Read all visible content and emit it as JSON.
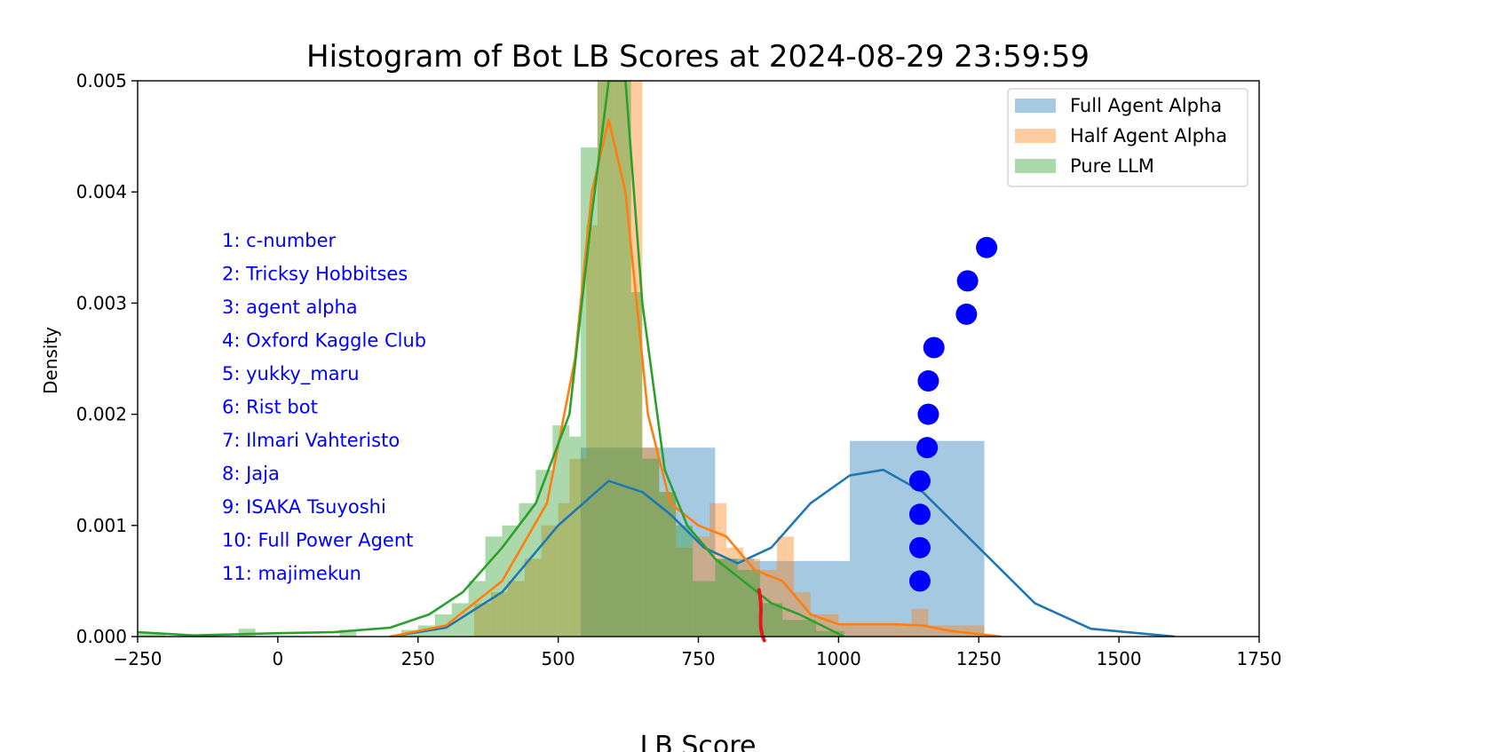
{
  "chart_data": {
    "type": "bar",
    "title": "Histogram of Bot LB Scores at 2024-08-29 23:59:59",
    "xlabel": "LB Score",
    "ylabel": "Density",
    "xlim": [
      -250,
      1750
    ],
    "ylim": [
      0,
      0.005
    ],
    "xticks": [
      -250,
      0,
      250,
      500,
      750,
      1000,
      1250,
      1500,
      1750
    ],
    "yticks": [
      0.0,
      0.001,
      0.002,
      0.003,
      0.004,
      0.005
    ],
    "xtick_labels": [
      "−250",
      "0",
      "250",
      "500",
      "750",
      "1000",
      "1250",
      "1500",
      "1750"
    ],
    "ytick_labels": [
      "0.000",
      "0.001",
      "0.002",
      "0.003",
      "0.004",
      "0.005"
    ],
    "grid": false,
    "legend_position": "top-right",
    "series": [
      {
        "name": "Full Agent Alpha",
        "color": "#1f77b4",
        "bins": [
          [
            540,
            650,
            0.0017
          ],
          [
            650,
            780,
            0.0017
          ],
          [
            780,
            850,
            0.0007
          ],
          [
            850,
            1020,
            0.00068
          ],
          [
            1020,
            1260,
            0.00176
          ]
        ],
        "kde": [
          [
            200,
            0.0
          ],
          [
            300,
            8e-05
          ],
          [
            400,
            0.0004
          ],
          [
            500,
            0.001
          ],
          [
            590,
            0.0014
          ],
          [
            650,
            0.0013
          ],
          [
            700,
            0.0011
          ],
          [
            760,
            0.0008
          ],
          [
            820,
            0.00066
          ],
          [
            880,
            0.0008
          ],
          [
            950,
            0.0012
          ],
          [
            1020,
            0.00145
          ],
          [
            1080,
            0.0015
          ],
          [
            1150,
            0.0013
          ],
          [
            1250,
            0.0008
          ],
          [
            1350,
            0.0003
          ],
          [
            1450,
            7e-05
          ],
          [
            1600,
            0.0
          ]
        ]
      },
      {
        "name": "Half Agent Alpha",
        "color": "#ff7f0e",
        "bins": [
          [
            350,
            380,
            0.0003
          ],
          [
            380,
            410,
            0.0004
          ],
          [
            410,
            440,
            0.0005
          ],
          [
            440,
            470,
            0.0007
          ],
          [
            470,
            500,
            0.001
          ],
          [
            500,
            520,
            0.0012
          ],
          [
            520,
            550,
            0.0016
          ],
          [
            550,
            570,
            0.0037
          ],
          [
            570,
            610,
            0.005
          ],
          [
            610,
            650,
            0.005
          ],
          [
            650,
            680,
            0.0017
          ],
          [
            680,
            710,
            0.0013
          ],
          [
            710,
            740,
            0.0008
          ],
          [
            740,
            770,
            0.0009
          ],
          [
            770,
            800,
            0.0012
          ],
          [
            800,
            830,
            0.0008
          ],
          [
            830,
            860,
            0.0007
          ],
          [
            860,
            890,
            0.0006
          ],
          [
            890,
            920,
            0.0009
          ],
          [
            920,
            950,
            0.0004
          ],
          [
            950,
            1000,
            0.0002
          ],
          [
            1000,
            1130,
            0.0001
          ],
          [
            1130,
            1160,
            0.00025
          ],
          [
            1160,
            1260,
            0.0001
          ]
        ],
        "kde": [
          [
            200,
            0.0
          ],
          [
            300,
            0.0001
          ],
          [
            400,
            0.0005
          ],
          [
            480,
            0.0012
          ],
          [
            530,
            0.0025
          ],
          [
            560,
            0.004
          ],
          [
            590,
            0.00465
          ],
          [
            620,
            0.004
          ],
          [
            660,
            0.002
          ],
          [
            700,
            0.0012
          ],
          [
            750,
            0.001
          ],
          [
            800,
            0.0009
          ],
          [
            850,
            0.0006
          ],
          [
            900,
            0.0005
          ],
          [
            950,
            0.0002
          ],
          [
            1000,
            0.00011
          ],
          [
            1100,
            0.00011
          ],
          [
            1150,
            0.0001
          ],
          [
            1200,
            5e-05
          ],
          [
            1290,
            0.0
          ]
        ]
      },
      {
        "name": "Pure LLM",
        "color": "#2ca02c",
        "bins": [
          [
            -250,
            -200,
            3e-05
          ],
          [
            -70,
            -40,
            7e-05
          ],
          [
            110,
            140,
            6e-05
          ],
          [
            220,
            250,
            6e-05
          ],
          [
            250,
            280,
            0.0001
          ],
          [
            280,
            310,
            0.0002
          ],
          [
            310,
            340,
            0.0003
          ],
          [
            340,
            370,
            0.0005
          ],
          [
            370,
            400,
            0.0009
          ],
          [
            400,
            430,
            0.001
          ],
          [
            430,
            460,
            0.0012
          ],
          [
            460,
            490,
            0.0015
          ],
          [
            490,
            520,
            0.0019
          ],
          [
            520,
            540,
            0.0018
          ],
          [
            540,
            570,
            0.0044
          ],
          [
            570,
            600,
            0.005
          ],
          [
            600,
            630,
            0.005
          ],
          [
            630,
            650,
            0.0031
          ],
          [
            650,
            680,
            0.0016
          ],
          [
            680,
            710,
            0.0013
          ],
          [
            710,
            740,
            0.001
          ],
          [
            740,
            780,
            0.0005
          ],
          [
            780,
            820,
            0.0007
          ],
          [
            820,
            860,
            0.0006
          ],
          [
            860,
            900,
            0.0003
          ],
          [
            900,
            960,
            0.00015
          ],
          [
            960,
            1010,
            5e-05
          ]
        ],
        "kde": [
          [
            -250,
            4e-05
          ],
          [
            -150,
            1e-05
          ],
          [
            0,
            3e-05
          ],
          [
            100,
            4e-05
          ],
          [
            200,
            8e-05
          ],
          [
            270,
            0.0002
          ],
          [
            330,
            0.0004
          ],
          [
            400,
            0.0008
          ],
          [
            460,
            0.0012
          ],
          [
            520,
            0.002
          ],
          [
            560,
            0.0038
          ],
          [
            590,
            0.005
          ],
          [
            620,
            0.005
          ],
          [
            650,
            0.003
          ],
          [
            690,
            0.0015
          ],
          [
            730,
            0.001
          ],
          [
            780,
            0.0007
          ],
          [
            830,
            0.0005
          ],
          [
            880,
            0.0003
          ],
          [
            930,
            0.0002
          ],
          [
            970,
            0.0001
          ],
          [
            1010,
            0.0
          ]
        ]
      }
    ],
    "markers": {
      "color": "#0000ff",
      "points": [
        [
          1264,
          0.0035
        ],
        [
          1230,
          0.0032
        ],
        [
          1228,
          0.0029
        ],
        [
          1170,
          0.0026
        ],
        [
          1160,
          0.0023
        ],
        [
          1160,
          0.002
        ],
        [
          1158,
          0.0017
        ],
        [
          1145,
          0.0014
        ],
        [
          1145,
          0.0011
        ],
        [
          1145,
          0.0008
        ],
        [
          1145,
          0.0005
        ]
      ]
    },
    "annotations": [
      "1: c-number",
      "2: Tricksy Hobbitses",
      "3: agent alpha",
      "4: Oxford Kaggle Club",
      "5: yukky_maru",
      "6: Rist bot",
      "7: Ilmari Vahteristo",
      "8: Jaja",
      "9: ISAKA Tsuyoshi",
      "10: Full Power Agent",
      "11: majimekun"
    ],
    "annotation_color": "#0000ff"
  }
}
